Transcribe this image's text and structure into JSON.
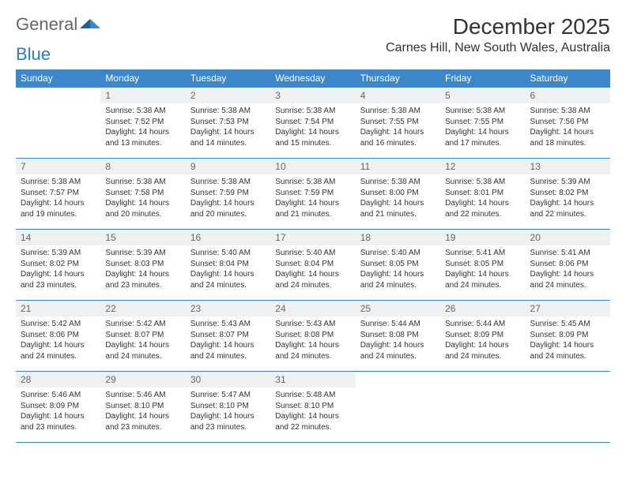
{
  "brand": {
    "part1": "General",
    "part2": "Blue"
  },
  "title": "December 2025",
  "location": "Carnes Hill, New South Wales, Australia",
  "calendar": {
    "type": "table",
    "header_bg": "#3d87c9",
    "header_fg": "#ffffff",
    "daynum_bg": "#eef0f2",
    "border_color": "#3d87c9",
    "background_color": "#ffffff",
    "text_color": "#333333",
    "font_family": "Arial",
    "body_fontsize": 10,
    "header_fontsize": 12,
    "title_fontsize": 28,
    "location_fontsize": 16,
    "columns": [
      "Sunday",
      "Monday",
      "Tuesday",
      "Wednesday",
      "Thursday",
      "Friday",
      "Saturday"
    ],
    "weeks": [
      [
        null,
        {
          "n": "1",
          "sr": "Sunrise: 5:38 AM",
          "ss": "Sunset: 7:52 PM",
          "dl": "Daylight: 14 hours and 13 minutes."
        },
        {
          "n": "2",
          "sr": "Sunrise: 5:38 AM",
          "ss": "Sunset: 7:53 PM",
          "dl": "Daylight: 14 hours and 14 minutes."
        },
        {
          "n": "3",
          "sr": "Sunrise: 5:38 AM",
          "ss": "Sunset: 7:54 PM",
          "dl": "Daylight: 14 hours and 15 minutes."
        },
        {
          "n": "4",
          "sr": "Sunrise: 5:38 AM",
          "ss": "Sunset: 7:55 PM",
          "dl": "Daylight: 14 hours and 16 minutes."
        },
        {
          "n": "5",
          "sr": "Sunrise: 5:38 AM",
          "ss": "Sunset: 7:55 PM",
          "dl": "Daylight: 14 hours and 17 minutes."
        },
        {
          "n": "6",
          "sr": "Sunrise: 5:38 AM",
          "ss": "Sunset: 7:56 PM",
          "dl": "Daylight: 14 hours and 18 minutes."
        }
      ],
      [
        {
          "n": "7",
          "sr": "Sunrise: 5:38 AM",
          "ss": "Sunset: 7:57 PM",
          "dl": "Daylight: 14 hours and 19 minutes."
        },
        {
          "n": "8",
          "sr": "Sunrise: 5:38 AM",
          "ss": "Sunset: 7:58 PM",
          "dl": "Daylight: 14 hours and 20 minutes."
        },
        {
          "n": "9",
          "sr": "Sunrise: 5:38 AM",
          "ss": "Sunset: 7:59 PM",
          "dl": "Daylight: 14 hours and 20 minutes."
        },
        {
          "n": "10",
          "sr": "Sunrise: 5:38 AM",
          "ss": "Sunset: 7:59 PM",
          "dl": "Daylight: 14 hours and 21 minutes."
        },
        {
          "n": "11",
          "sr": "Sunrise: 5:38 AM",
          "ss": "Sunset: 8:00 PM",
          "dl": "Daylight: 14 hours and 21 minutes."
        },
        {
          "n": "12",
          "sr": "Sunrise: 5:38 AM",
          "ss": "Sunset: 8:01 PM",
          "dl": "Daylight: 14 hours and 22 minutes."
        },
        {
          "n": "13",
          "sr": "Sunrise: 5:39 AM",
          "ss": "Sunset: 8:02 PM",
          "dl": "Daylight: 14 hours and 22 minutes."
        }
      ],
      [
        {
          "n": "14",
          "sr": "Sunrise: 5:39 AM",
          "ss": "Sunset: 8:02 PM",
          "dl": "Daylight: 14 hours and 23 minutes."
        },
        {
          "n": "15",
          "sr": "Sunrise: 5:39 AM",
          "ss": "Sunset: 8:03 PM",
          "dl": "Daylight: 14 hours and 23 minutes."
        },
        {
          "n": "16",
          "sr": "Sunrise: 5:40 AM",
          "ss": "Sunset: 8:04 PM",
          "dl": "Daylight: 14 hours and 24 minutes."
        },
        {
          "n": "17",
          "sr": "Sunrise: 5:40 AM",
          "ss": "Sunset: 8:04 PM",
          "dl": "Daylight: 14 hours and 24 minutes."
        },
        {
          "n": "18",
          "sr": "Sunrise: 5:40 AM",
          "ss": "Sunset: 8:05 PM",
          "dl": "Daylight: 14 hours and 24 minutes."
        },
        {
          "n": "19",
          "sr": "Sunrise: 5:41 AM",
          "ss": "Sunset: 8:05 PM",
          "dl": "Daylight: 14 hours and 24 minutes."
        },
        {
          "n": "20",
          "sr": "Sunrise: 5:41 AM",
          "ss": "Sunset: 8:06 PM",
          "dl": "Daylight: 14 hours and 24 minutes."
        }
      ],
      [
        {
          "n": "21",
          "sr": "Sunrise: 5:42 AM",
          "ss": "Sunset: 8:06 PM",
          "dl": "Daylight: 14 hours and 24 minutes."
        },
        {
          "n": "22",
          "sr": "Sunrise: 5:42 AM",
          "ss": "Sunset: 8:07 PM",
          "dl": "Daylight: 14 hours and 24 minutes."
        },
        {
          "n": "23",
          "sr": "Sunrise: 5:43 AM",
          "ss": "Sunset: 8:07 PM",
          "dl": "Daylight: 14 hours and 24 minutes."
        },
        {
          "n": "24",
          "sr": "Sunrise: 5:43 AM",
          "ss": "Sunset: 8:08 PM",
          "dl": "Daylight: 14 hours and 24 minutes."
        },
        {
          "n": "25",
          "sr": "Sunrise: 5:44 AM",
          "ss": "Sunset: 8:08 PM",
          "dl": "Daylight: 14 hours and 24 minutes."
        },
        {
          "n": "26",
          "sr": "Sunrise: 5:44 AM",
          "ss": "Sunset: 8:09 PM",
          "dl": "Daylight: 14 hours and 24 minutes."
        },
        {
          "n": "27",
          "sr": "Sunrise: 5:45 AM",
          "ss": "Sunset: 8:09 PM",
          "dl": "Daylight: 14 hours and 24 minutes."
        }
      ],
      [
        {
          "n": "28",
          "sr": "Sunrise: 5:46 AM",
          "ss": "Sunset: 8:09 PM",
          "dl": "Daylight: 14 hours and 23 minutes."
        },
        {
          "n": "29",
          "sr": "Sunrise: 5:46 AM",
          "ss": "Sunset: 8:10 PM",
          "dl": "Daylight: 14 hours and 23 minutes."
        },
        {
          "n": "30",
          "sr": "Sunrise: 5:47 AM",
          "ss": "Sunset: 8:10 PM",
          "dl": "Daylight: 14 hours and 23 minutes."
        },
        {
          "n": "31",
          "sr": "Sunrise: 5:48 AM",
          "ss": "Sunset: 8:10 PM",
          "dl": "Daylight: 14 hours and 22 minutes."
        },
        null,
        null,
        null
      ]
    ]
  }
}
